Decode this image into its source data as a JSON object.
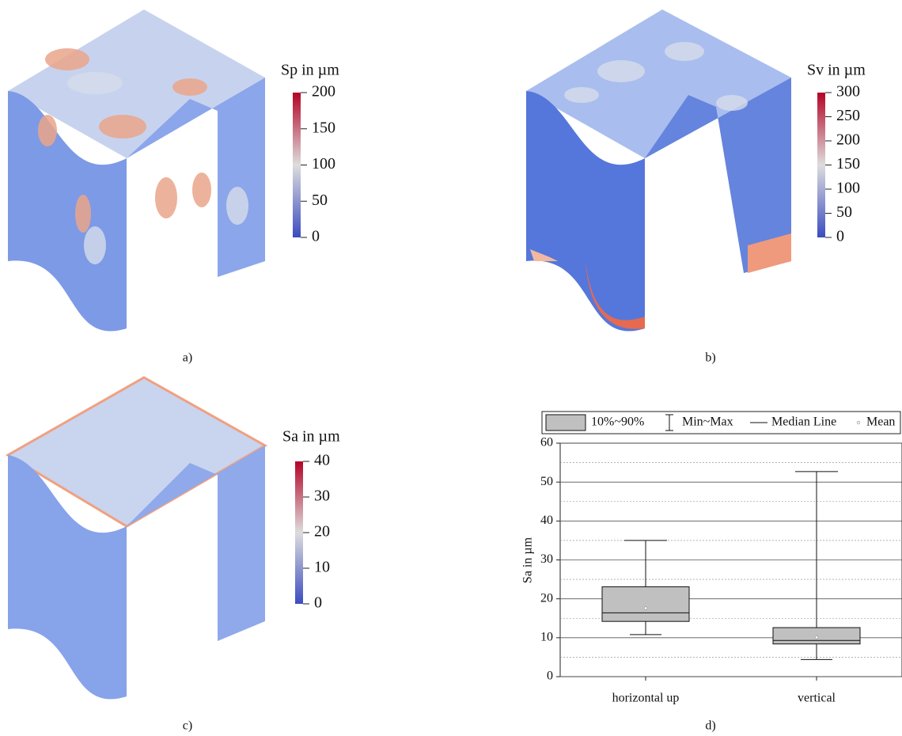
{
  "panels": [
    {
      "label": "a)",
      "colorbar": {
        "title": "Sp in µm",
        "lim": [
          0,
          200
        ],
        "ticks": [
          0,
          50,
          100,
          150,
          200
        ]
      }
    },
    {
      "label": "b)",
      "colorbar": {
        "title": "Sv in µm",
        "lim": [
          0,
          300
        ],
        "ticks": [
          0,
          50,
          100,
          150,
          200,
          250,
          300
        ]
      }
    },
    {
      "label": "c)",
      "colorbar": {
        "title": "Sa in µm",
        "lim": [
          0,
          40
        ],
        "ticks": [
          0,
          10,
          20,
          30,
          40
        ]
      }
    },
    {
      "label": "d)"
    }
  ],
  "colormap": [
    "#3b4cc0",
    "#dddddd",
    "#b40426"
  ],
  "chart_data": {
    "type": "box",
    "ylabel": "Sa in µm",
    "categories": [
      "horizontal up",
      "vertical"
    ],
    "boxes": [
      {
        "min": 10.8,
        "p10": 14.2,
        "median": 16.4,
        "p90": 23.1,
        "max": 35,
        "mean": 17.6
      },
      {
        "min": 4.4,
        "p10": 8.4,
        "median": 9.3,
        "p90": 12.6,
        "max": 52.7,
        "mean": 10.1
      }
    ],
    "color": "#c0c0c0",
    "legend": [
      "10%~90%",
      "Min~Max",
      "Median Line",
      "Mean"
    ],
    "ylim": [
      0,
      60
    ],
    "yticks": [
      0,
      10,
      20,
      30,
      40,
      50,
      60
    ],
    "minor_yticks": [
      5,
      15,
      25,
      35,
      45,
      55
    ],
    "grid": true
  }
}
